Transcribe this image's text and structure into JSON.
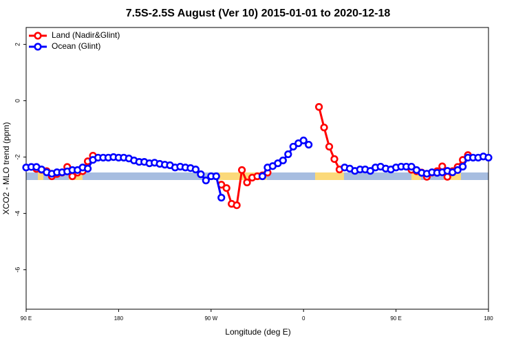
{
  "chart_data": {
    "type": "line",
    "title": "7.5S-2.5S August (Ver 10)   2015-01-01 to 2020-12-18",
    "x_label": "Longitude (deg E)",
    "y_label": "XCO2 - MLO trend (ppm)",
    "xlim": [
      90,
      540
    ],
    "xticks": [
      {
        "value": 90,
        "label": "90 E"
      },
      180,
      {
        "value": 270,
        "label": "90 W"
      },
      {
        "value": 360,
        "label": "0"
      },
      {
        "value": 450,
        "label": "90 E"
      },
      {
        "value": 540,
        "label": "180"
      }
    ],
    "ylim": [
      -7.4,
      2.6
    ],
    "yticks": [
      -6,
      -4,
      -2,
      0,
      2
    ],
    "legend": "top-left",
    "x": [
      90,
      95,
      100,
      105,
      110,
      115,
      120,
      125,
      130,
      135,
      140,
      145,
      150,
      155,
      160,
      165,
      170,
      175,
      180,
      185,
      190,
      195,
      200,
      205,
      210,
      215,
      220,
      225,
      230,
      235,
      240,
      245,
      250,
      255,
      260,
      265,
      270,
      275,
      280,
      285,
      290,
      295,
      300,
      305,
      310,
      315,
      320,
      325,
      330,
      335,
      340,
      345,
      350,
      355,
      360,
      365,
      370,
      375,
      380,
      385,
      390,
      395,
      400,
      405,
      410,
      415,
      420,
      425,
      430,
      435,
      440,
      445,
      450,
      455,
      460,
      465,
      470,
      475,
      480,
      485,
      490,
      495,
      500,
      505,
      510,
      515,
      520,
      525,
      530,
      535,
      540
    ],
    "series": [
      {
        "name": "Land (Nadir&Glint)",
        "color": "#ff0000",
        "values": [
          null,
          null,
          -2.42,
          -2.45,
          -2.5,
          -2.68,
          -2.6,
          -2.55,
          -2.35,
          -2.68,
          -2.55,
          -2.5,
          -2.15,
          -1.95,
          null,
          null,
          null,
          null,
          null,
          null,
          null,
          null,
          null,
          null,
          null,
          null,
          null,
          null,
          null,
          null,
          null,
          null,
          null,
          null,
          null,
          null,
          null,
          null,
          -2.98,
          -3.1,
          -3.66,
          -3.71,
          -2.46,
          -2.9,
          -2.73,
          -2.68,
          -2.65,
          -2.55,
          null,
          null,
          null,
          null,
          null,
          null,
          null,
          null,
          null,
          -0.22,
          -0.95,
          -1.63,
          -2.07,
          -2.44,
          null,
          null,
          null,
          null,
          null,
          null,
          null,
          null,
          null,
          null,
          null,
          null,
          null,
          -2.45,
          -2.5,
          -2.55,
          -2.7,
          -2.55,
          -2.5,
          -2.33,
          -2.7,
          -2.5,
          -2.35,
          -2.1,
          -1.93,
          null,
          null,
          null,
          null
        ]
      },
      {
        "name": "Ocean (Glint)",
        "color": "#0000ff",
        "values": [
          -2.37,
          -2.35,
          -2.35,
          -2.44,
          -2.54,
          -2.59,
          -2.54,
          -2.54,
          -2.51,
          -2.46,
          -2.46,
          -2.37,
          -2.41,
          -2.1,
          -2.02,
          -2.02,
          -2.02,
          -2.0,
          -2.02,
          -2.02,
          -2.05,
          -2.12,
          -2.17,
          -2.17,
          -2.22,
          -2.2,
          -2.24,
          -2.27,
          -2.29,
          -2.37,
          -2.34,
          -2.37,
          -2.39,
          -2.44,
          -2.61,
          -2.83,
          -2.68,
          -2.68,
          -3.44,
          null,
          null,
          null,
          null,
          null,
          null,
          null,
          -2.68,
          -2.37,
          -2.32,
          -2.22,
          -2.12,
          -1.9,
          -1.63,
          -1.51,
          -1.41,
          -1.56,
          null,
          null,
          null,
          null,
          null,
          null,
          -2.37,
          -2.41,
          -2.49,
          -2.44,
          -2.44,
          -2.49,
          -2.37,
          -2.34,
          -2.41,
          -2.44,
          -2.37,
          -2.34,
          -2.34,
          -2.34,
          -2.46,
          -2.56,
          -2.59,
          -2.54,
          -2.56,
          -2.54,
          -2.49,
          -2.54,
          -2.46,
          -2.34,
          -2.02,
          -2.02,
          -2.02,
          -1.98,
          -2.02
        ]
      }
    ]
  }
}
